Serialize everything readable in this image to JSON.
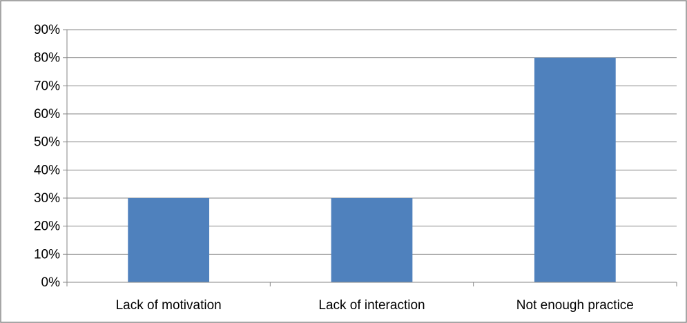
{
  "chart_data": {
    "type": "bar",
    "title": "",
    "xlabel": "",
    "ylabel": "",
    "categories": [
      "Lack of motivation",
      "Lack of interaction",
      "Not enough practice"
    ],
    "values": [
      30,
      30,
      80
    ],
    "ylim": [
      0,
      90
    ],
    "ytick_step": 10,
    "ytick_format": "percent",
    "grid": true,
    "legend": "none",
    "bar_color": "#4F81BD"
  }
}
